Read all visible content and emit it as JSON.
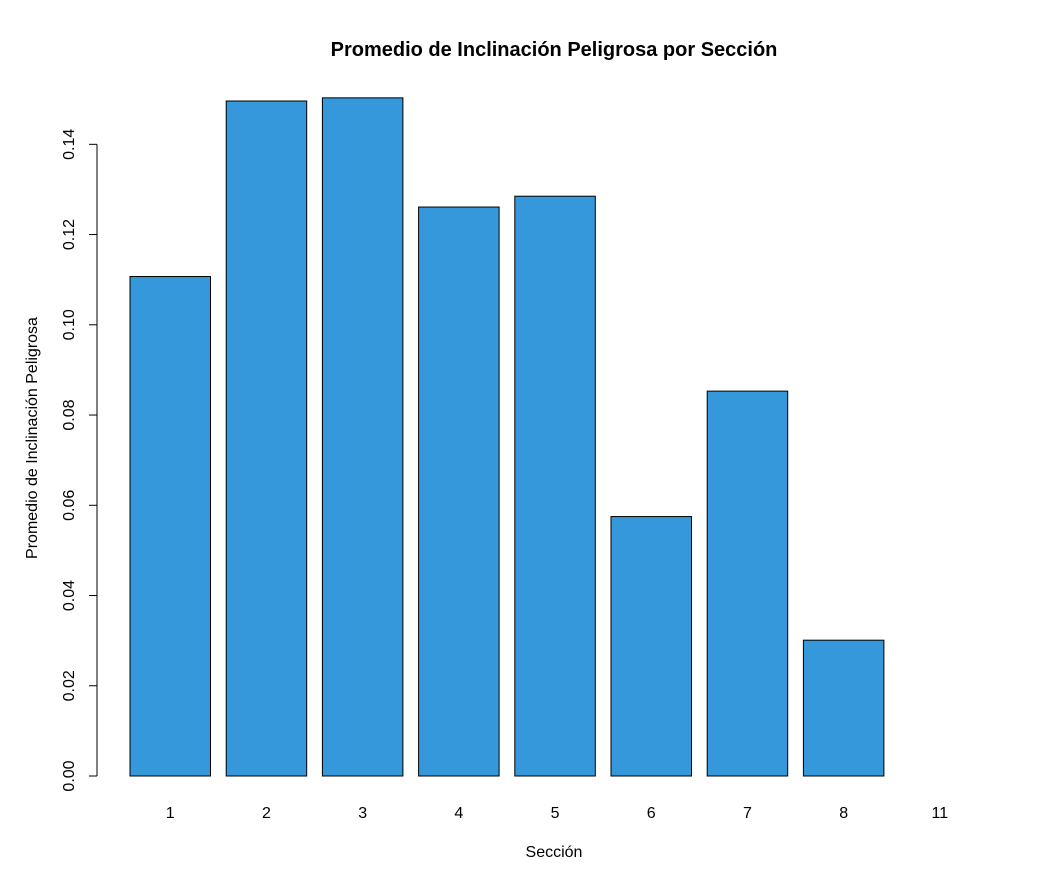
{
  "chart_data": {
    "type": "bar",
    "title": "Promedio de Inclinación Peligrosa por Sección",
    "xlabel": "Sección",
    "ylabel": "Promedio de Inclinación Peligrosa",
    "categories": [
      "1",
      "2",
      "3",
      "4",
      "5",
      "6",
      "7",
      "8",
      "11"
    ],
    "values": [
      0.1107,
      0.1496,
      0.1503,
      0.1261,
      0.1285,
      0.0575,
      0.0853,
      0.0301,
      0.0
    ],
    "ylim": [
      0,
      0.15
    ],
    "yticks": [
      0.0,
      0.02,
      0.04,
      0.06,
      0.08,
      0.1,
      0.12,
      0.14
    ],
    "ytick_labels": [
      "0.00",
      "0.02",
      "0.04",
      "0.06",
      "0.08",
      "0.10",
      "0.12",
      "0.14"
    ],
    "bar_color": "#3498db",
    "bar_border_color": "#000000",
    "grid": false,
    "legend": "none"
  }
}
